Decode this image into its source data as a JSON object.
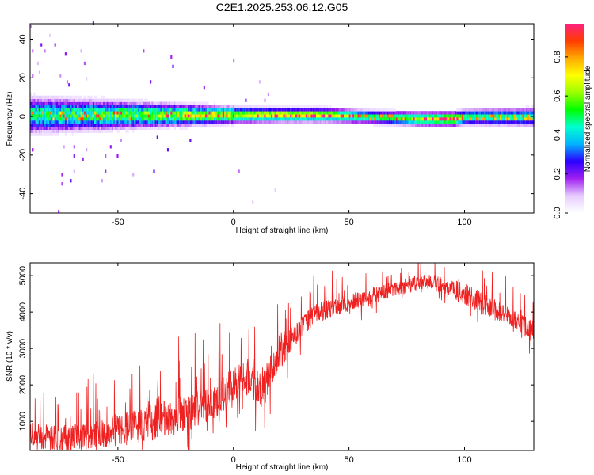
{
  "title": "C2E1.2025.253.06.12.G05",
  "chart_data": [
    {
      "type": "heatmap",
      "xlabel": "Height of straight line (km)",
      "ylabel": "Frequency (Hz)",
      "xlim": [
        -88,
        130
      ],
      "ylim": [
        -50,
        48
      ],
      "xticks": [
        -50,
        0,
        50,
        100
      ],
      "yticks": [
        -40,
        -20,
        0,
        20,
        40
      ],
      "colorbar": {
        "label": "Normalized spectral amplitude",
        "range": [
          0,
          0.97
        ],
        "ticks": [
          0.0,
          0.2,
          0.4,
          0.6,
          0.8
        ],
        "tick_labels": [
          "0.0",
          "0.2",
          "0.4",
          "0.6",
          "0.8"
        ],
        "colormap": [
          "#ffffff",
          "#e6ccff",
          "#a020f0",
          "#2a00ff",
          "#00b4ff",
          "#00ffd0",
          "#00ff00",
          "#9aff00",
          "#ffff00",
          "#ffaa00",
          "#ff3c00",
          "#ff2080"
        ]
      },
      "ridge": [
        {
          "x": -88,
          "center": 0,
          "halfwidth": 8,
          "peak": 0.45
        },
        {
          "x": -70,
          "center": 0,
          "halfwidth": 7,
          "peak": 0.5
        },
        {
          "x": -50,
          "center": 0,
          "halfwidth": 6,
          "peak": 0.55
        },
        {
          "x": -30,
          "center": 0,
          "halfwidth": 5,
          "peak": 0.6
        },
        {
          "x": -10,
          "center": 0,
          "halfwidth": 4,
          "peak": 0.7
        },
        {
          "x": 0,
          "center": 0,
          "halfwidth": 3.5,
          "peak": 0.75
        },
        {
          "x": 20,
          "center": 0,
          "halfwidth": 3,
          "peak": 0.9
        },
        {
          "x": 40,
          "center": 0,
          "halfwidth": 3,
          "peak": 0.85
        },
        {
          "x": 60,
          "center": -1,
          "halfwidth": 3,
          "peak": 0.6
        },
        {
          "x": 80,
          "center": -2,
          "halfwidth": 3,
          "peak": 0.75
        },
        {
          "x": 95,
          "center": -2,
          "halfwidth": 3,
          "peak": 0.9
        },
        {
          "x": 100,
          "center": -1,
          "halfwidth": 3.5,
          "peak": 0.6
        },
        {
          "x": 130,
          "center": -1,
          "halfwidth": 4,
          "peak": 0.55
        }
      ]
    },
    {
      "type": "line",
      "xlabel": "Height of straight line (km)",
      "ylabel": "SNR (10 * v/v)",
      "xlim": [
        -88,
        130
      ],
      "ylim": [
        200,
        5350
      ],
      "xticks": [
        -50,
        0,
        50,
        100
      ],
      "yticks": [
        1000,
        2000,
        3000,
        4000,
        5000
      ],
      "color": "#ee2020",
      "envelope": [
        {
          "x": -88,
          "base": 700,
          "amp": 500
        },
        {
          "x": -80,
          "base": 500,
          "amp": 600
        },
        {
          "x": -60,
          "base": 650,
          "amp": 700
        },
        {
          "x": -40,
          "base": 900,
          "amp": 800
        },
        {
          "x": -20,
          "base": 1200,
          "amp": 900
        },
        {
          "x": -5,
          "base": 1700,
          "amp": 800
        },
        {
          "x": 5,
          "base": 2300,
          "amp": 800
        },
        {
          "x": 12,
          "base": 1900,
          "amp": 900
        },
        {
          "x": 20,
          "base": 2800,
          "amp": 700
        },
        {
          "x": 27,
          "base": 3400,
          "amp": 500
        },
        {
          "x": 35,
          "base": 3950,
          "amp": 450
        },
        {
          "x": 50,
          "base": 4250,
          "amp": 400
        },
        {
          "x": 70,
          "base": 4650,
          "amp": 350
        },
        {
          "x": 85,
          "base": 4850,
          "amp": 350
        },
        {
          "x": 100,
          "base": 4500,
          "amp": 500
        },
        {
          "x": 115,
          "base": 4000,
          "amp": 500
        },
        {
          "x": 130,
          "base": 3500,
          "amp": 400
        }
      ]
    }
  ]
}
